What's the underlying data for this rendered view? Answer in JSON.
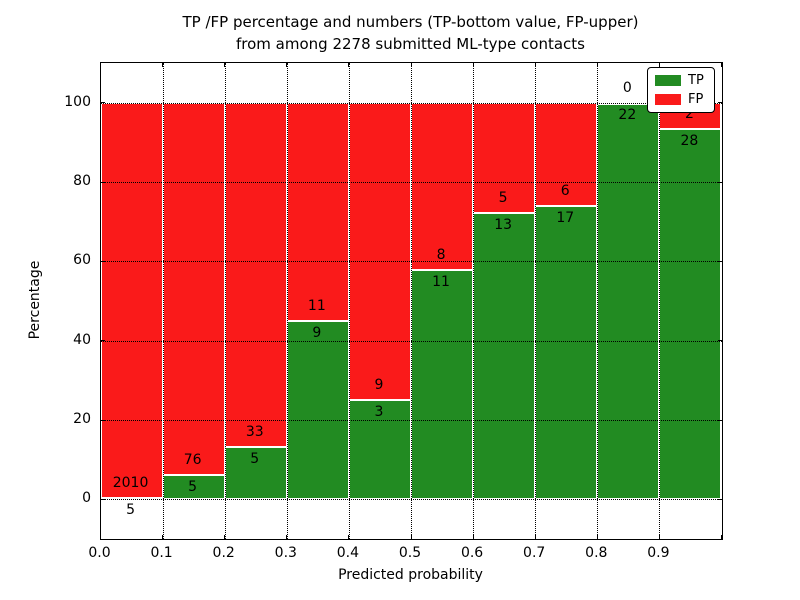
{
  "chart_data": {
    "type": "bar",
    "stacked": true,
    "normalized": "percent_per_bin",
    "title": "TP /FP percentage and numbers (TP-bottom value, FP-upper)\nfrom among 2278 submitted ML-type contacts",
    "xlabel": "Predicted probability",
    "ylabel": "Percentage",
    "total_contacts": 2278,
    "xlim": [
      0.0,
      1.0
    ],
    "ylim": [
      -10,
      110
    ],
    "grid": true,
    "grid_style": "dotted",
    "bin_edges": [
      0.0,
      0.1,
      0.2,
      0.3,
      0.4,
      0.5,
      0.6,
      0.7,
      0.8,
      0.9,
      1.0
    ],
    "x_tick_values": [
      0.0,
      0.1,
      0.2,
      0.3,
      0.4,
      0.5,
      0.6,
      0.7,
      0.8,
      0.9
    ],
    "x_ticks": [
      "0.0",
      "0.1",
      "0.2",
      "0.3",
      "0.4",
      "0.5",
      "0.6",
      "0.7",
      "0.8",
      "0.9"
    ],
    "y_tick_values": [
      0,
      20,
      40,
      60,
      80,
      100
    ],
    "y_ticks": [
      "0",
      "20",
      "40",
      "60",
      "80",
      "100"
    ],
    "series": [
      {
        "name": "TP",
        "color": "#228b22",
        "position": "bottom",
        "counts": [
          5,
          5,
          5,
          9,
          3,
          11,
          13,
          17,
          22,
          28
        ],
        "percentages": [
          0.25,
          6.17,
          13.16,
          45.0,
          25.0,
          57.89,
          72.22,
          73.91,
          100.0,
          93.33
        ]
      },
      {
        "name": "FP",
        "color": "#fa1a1a",
        "position": "top",
        "counts": [
          2010,
          76,
          33,
          11,
          9,
          8,
          5,
          6,
          0,
          2
        ],
        "percentages": [
          99.75,
          93.83,
          86.84,
          55.0,
          75.0,
          42.11,
          27.78,
          26.09,
          0.0,
          6.67
        ]
      }
    ],
    "legend": {
      "position": "upper right",
      "entries": [
        {
          "label": "TP",
          "color": "#228b22"
        },
        {
          "label": "FP",
          "color": "#fa1a1a"
        }
      ]
    },
    "colors": {
      "background": "#ffffff",
      "bar_edge": "#ffffff",
      "grid": "#000000",
      "text": "#000000"
    }
  }
}
